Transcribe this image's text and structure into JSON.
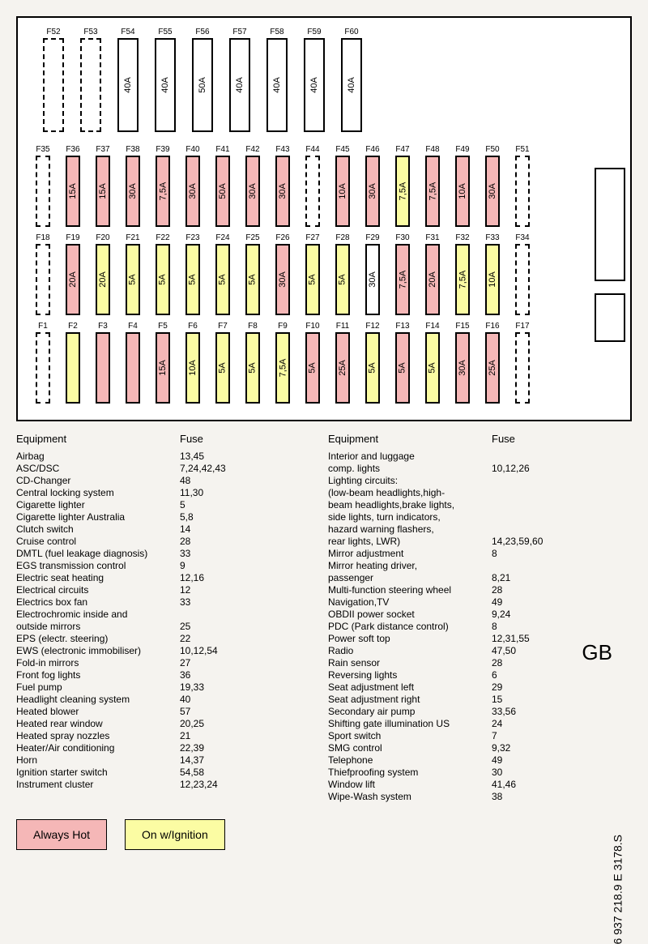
{
  "colors": {
    "always_hot": "#f5b7b7",
    "on_ignition": "#fbfca3",
    "blank": "#ffffff",
    "border": "#000000",
    "bg": "#f5f3ef"
  },
  "legend": {
    "always_hot": "Always Hot",
    "on_ignition": "On w/Ignition"
  },
  "part_number": "6 937 218.9 E 3178.S",
  "region_label": "GB",
  "rows": {
    "top": [
      {
        "id": "F52",
        "amp": "",
        "type": "empty",
        "size": "large"
      },
      {
        "id": "F53",
        "amp": "",
        "type": "empty",
        "size": "large"
      },
      {
        "id": "F54",
        "amp": "40A",
        "type": "blank",
        "size": "large"
      },
      {
        "id": "F55",
        "amp": "40A",
        "type": "blank",
        "size": "large"
      },
      {
        "id": "F56",
        "amp": "50A",
        "type": "blank",
        "size": "large"
      },
      {
        "id": "F57",
        "amp": "40A",
        "type": "blank",
        "size": "large"
      },
      {
        "id": "F58",
        "amp": "40A",
        "type": "blank",
        "size": "large"
      },
      {
        "id": "F59",
        "amp": "40A",
        "type": "blank",
        "size": "large"
      },
      {
        "id": "F60",
        "amp": "40A",
        "type": "blank",
        "size": "large"
      }
    ],
    "r2": [
      {
        "id": "F35",
        "amp": "",
        "type": "empty"
      },
      {
        "id": "F36",
        "amp": "15A",
        "type": "hot"
      },
      {
        "id": "F37",
        "amp": "15A",
        "type": "hot"
      },
      {
        "id": "F38",
        "amp": "30A",
        "type": "hot"
      },
      {
        "id": "F39",
        "amp": "7,5A",
        "type": "hot"
      },
      {
        "id": "F40",
        "amp": "30A",
        "type": "hot"
      },
      {
        "id": "F41",
        "amp": "50A",
        "type": "hot"
      },
      {
        "id": "F42",
        "amp": "30A",
        "type": "hot"
      },
      {
        "id": "F43",
        "amp": "30A",
        "type": "hot"
      },
      {
        "id": "F44",
        "amp": "",
        "type": "empty"
      },
      {
        "id": "F45",
        "amp": "10A",
        "type": "hot"
      },
      {
        "id": "F46",
        "amp": "30A",
        "type": "hot"
      },
      {
        "id": "F47",
        "amp": "7,5A",
        "type": "ign"
      },
      {
        "id": "F48",
        "amp": "7,5A",
        "type": "hot"
      },
      {
        "id": "F49",
        "amp": "10A",
        "type": "hot"
      },
      {
        "id": "F50",
        "amp": "30A",
        "type": "hot"
      },
      {
        "id": "F51",
        "amp": "",
        "type": "empty"
      }
    ],
    "r3": [
      {
        "id": "F18",
        "amp": "",
        "type": "empty"
      },
      {
        "id": "F19",
        "amp": "20A",
        "type": "hot"
      },
      {
        "id": "F20",
        "amp": "20A",
        "type": "ign"
      },
      {
        "id": "F21",
        "amp": "5A",
        "type": "ign"
      },
      {
        "id": "F22",
        "amp": "5A",
        "type": "ign"
      },
      {
        "id": "F23",
        "amp": "5A",
        "type": "ign"
      },
      {
        "id": "F24",
        "amp": "5A",
        "type": "ign"
      },
      {
        "id": "F25",
        "amp": "5A",
        "type": "ign"
      },
      {
        "id": "F26",
        "amp": "30A",
        "type": "hot"
      },
      {
        "id": "F27",
        "amp": "5A",
        "type": "ign"
      },
      {
        "id": "F28",
        "amp": "5A",
        "type": "ign"
      },
      {
        "id": "F29",
        "amp": "30A",
        "type": "blank"
      },
      {
        "id": "F30",
        "amp": "7,5A",
        "type": "hot"
      },
      {
        "id": "F31",
        "amp": "20A",
        "type": "hot"
      },
      {
        "id": "F32",
        "amp": "7,5A",
        "type": "ign"
      },
      {
        "id": "F33",
        "amp": "10A",
        "type": "ign"
      },
      {
        "id": "F34",
        "amp": "",
        "type": "empty"
      }
    ],
    "r4": [
      {
        "id": "F1",
        "amp": "",
        "type": "empty"
      },
      {
        "id": "F2",
        "amp": "",
        "type": "ign"
      },
      {
        "id": "F3",
        "amp": "",
        "type": "hot"
      },
      {
        "id": "F4",
        "amp": "",
        "type": "hot"
      },
      {
        "id": "F5",
        "amp": "15A",
        "type": "hot"
      },
      {
        "id": "F6",
        "amp": "10A",
        "type": "ign"
      },
      {
        "id": "F7",
        "amp": "5A",
        "type": "ign"
      },
      {
        "id": "F8",
        "amp": "5A",
        "type": "ign"
      },
      {
        "id": "F9",
        "amp": "7,5A",
        "type": "ign"
      },
      {
        "id": "F10",
        "amp": "5A",
        "type": "hot"
      },
      {
        "id": "F11",
        "amp": "25A",
        "type": "hot"
      },
      {
        "id": "F12",
        "amp": "5A",
        "type": "ign"
      },
      {
        "id": "F13",
        "amp": "5A",
        "type": "hot"
      },
      {
        "id": "F14",
        "amp": "5A",
        "type": "ign"
      },
      {
        "id": "F15",
        "amp": "30A",
        "type": "hot"
      },
      {
        "id": "F16",
        "amp": "25A",
        "type": "hot"
      },
      {
        "id": "F17",
        "amp": "",
        "type": "empty"
      }
    ]
  },
  "equipment_header": {
    "equipment": "Equipment",
    "fuse": "Fuse"
  },
  "equipment_left": [
    {
      "name": "Airbag",
      "fuse": "13,45"
    },
    {
      "name": "ASC/DSC",
      "fuse": "7,24,42,43"
    },
    {
      "name": "CD-Changer",
      "fuse": "48"
    },
    {
      "name": "Central locking system",
      "fuse": "11,30"
    },
    {
      "name": "Cigarette lighter",
      "fuse": "5"
    },
    {
      "name": "Cigarette lighter Australia",
      "fuse": "5,8"
    },
    {
      "name": "Clutch switch",
      "fuse": "14"
    },
    {
      "name": "Cruise control",
      "fuse": "28"
    },
    {
      "name": "DMTL (fuel leakage diagnosis)",
      "fuse": "33"
    },
    {
      "name": "EGS transmission control",
      "fuse": "9"
    },
    {
      "name": "Electric seat heating",
      "fuse": "12,16"
    },
    {
      "name": "Electrical circuits",
      "fuse": "12"
    },
    {
      "name": "Electrics box fan",
      "fuse": "33"
    },
    {
      "name": "Electrochromic inside and",
      "fuse": ""
    },
    {
      "name": "outside mirrors",
      "fuse": "25"
    },
    {
      "name": "EPS (electr. steering)",
      "fuse": "22"
    },
    {
      "name": "EWS (electronic immobiliser)",
      "fuse": "10,12,54"
    },
    {
      "name": "Fold-in mirrors",
      "fuse": "27"
    },
    {
      "name": "Front fog lights",
      "fuse": "36"
    },
    {
      "name": "Fuel pump",
      "fuse": "19,33"
    },
    {
      "name": "Headlight cleaning system",
      "fuse": "40"
    },
    {
      "name": "Heated blower",
      "fuse": "57"
    },
    {
      "name": "Heated rear window",
      "fuse": "20,25"
    },
    {
      "name": "Heated spray nozzles",
      "fuse": "21"
    },
    {
      "name": "Heater/Air conditioning",
      "fuse": "22,39"
    },
    {
      "name": "Horn",
      "fuse": "14,37"
    },
    {
      "name": "Ignition starter switch",
      "fuse": "54,58"
    },
    {
      "name": "Instrument cluster",
      "fuse": "12,23,24"
    }
  ],
  "equipment_right": [
    {
      "name": "Interior and luggage",
      "fuse": ""
    },
    {
      "name": "comp. lights",
      "fuse": "10,12,26"
    },
    {
      "name": "Lighting circuits:",
      "fuse": ""
    },
    {
      "name": "(low-beam headlights,high-",
      "fuse": ""
    },
    {
      "name": "beam headlights,brake lights,",
      "fuse": ""
    },
    {
      "name": "side lights, turn indicators,",
      "fuse": ""
    },
    {
      "name": "hazard warning flashers,",
      "fuse": ""
    },
    {
      "name": "rear lights, LWR)",
      "fuse": "14,23,59,60"
    },
    {
      "name": "Mirror adjustment",
      "fuse": "8"
    },
    {
      "name": "Mirror heating driver,",
      "fuse": ""
    },
    {
      "name": "passenger",
      "fuse": "8,21"
    },
    {
      "name": "Multi-function steering wheel",
      "fuse": "28"
    },
    {
      "name": "Navigation,TV",
      "fuse": "49"
    },
    {
      "name": "OBDII power socket",
      "fuse": "9,24"
    },
    {
      "name": "PDC (Park distance control)",
      "fuse": "8"
    },
    {
      "name": "Power soft top",
      "fuse": "12,31,55"
    },
    {
      "name": "Radio",
      "fuse": "47,50"
    },
    {
      "name": "Rain sensor",
      "fuse": "28"
    },
    {
      "name": "Reversing lights",
      "fuse": "6"
    },
    {
      "name": "Seat adjustment left",
      "fuse": "29"
    },
    {
      "name": "Seat adjustment right",
      "fuse": "15"
    },
    {
      "name": "Secondary air pump",
      "fuse": "33,56"
    },
    {
      "name": "Shifting gate illumination US",
      "fuse": "24"
    },
    {
      "name": "Sport switch",
      "fuse": "7"
    },
    {
      "name": "SMG control",
      "fuse": "9,32"
    },
    {
      "name": "Telephone",
      "fuse": "49"
    },
    {
      "name": "Thiefproofing system",
      "fuse": "30"
    },
    {
      "name": "Window lift",
      "fuse": "41,46"
    },
    {
      "name": "Wipe-Wash system",
      "fuse": "38"
    }
  ]
}
